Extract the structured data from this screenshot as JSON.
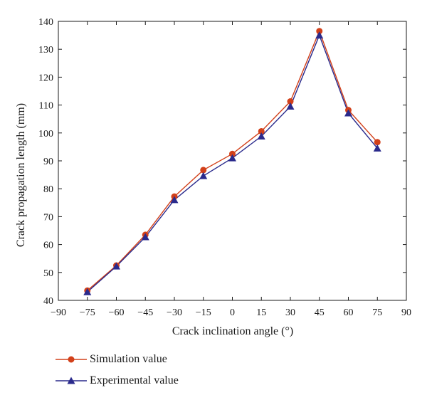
{
  "chart_data": {
    "type": "line",
    "xlabel": "Crack inclination angle (°)",
    "ylabel": "Crack propagation length (mm)",
    "xlim": [
      -90,
      90
    ],
    "ylim": [
      40,
      140
    ],
    "xticks": [
      -90,
      -75,
      -60,
      -45,
      -30,
      -15,
      0,
      15,
      30,
      45,
      60,
      75,
      90
    ],
    "xtick_labels": [
      "−90",
      "−75",
      "−60",
      "−45",
      "−30",
      "−15",
      "0",
      "15",
      "30",
      "45",
      "60",
      "75",
      "90"
    ],
    "yticks": [
      40,
      50,
      60,
      70,
      80,
      90,
      100,
      110,
      120,
      130,
      140
    ],
    "ytick_labels": [
      "40",
      "50",
      "60",
      "70",
      "80",
      "90",
      "100",
      "110",
      "120",
      "130",
      "140"
    ],
    "x": [
      -75,
      -60,
      -45,
      -30,
      -15,
      0,
      15,
      30,
      45,
      60,
      75
    ],
    "series": [
      {
        "name": "Simulation value",
        "marker": "circle",
        "color": "#d2401a",
        "values": [
          43.5,
          52.5,
          63.5,
          77.2,
          86.7,
          92.5,
          100.6,
          111.3,
          136.5,
          108.2,
          96.7
        ]
      },
      {
        "name": "Experimental value",
        "marker": "triangle",
        "color": "#2a2a8c",
        "values": [
          43.0,
          52.2,
          62.7,
          76.0,
          84.6,
          91.0,
          98.8,
          109.5,
          135.0,
          107.1,
          94.5
        ]
      }
    ],
    "grid": false,
    "legend_position": "bottom-left"
  }
}
